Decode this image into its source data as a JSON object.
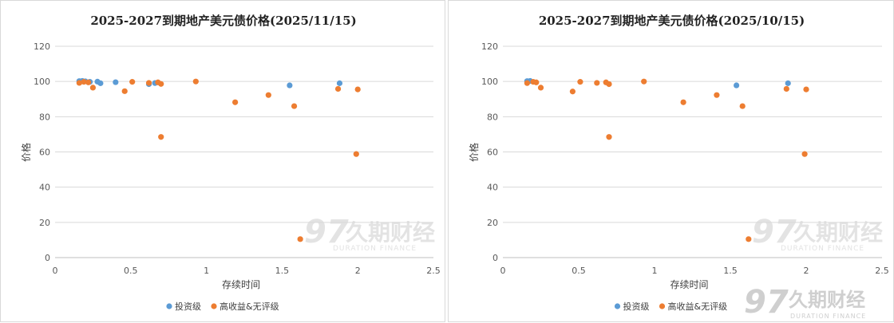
{
  "charts": [
    {
      "panel": "left",
      "title": "2025-2027到期地产美元债价格(2025/11/15)",
      "watermark": {
        "cn": "久期财经",
        "en": "DURATION FINANCE"
      },
      "chart_data": {
        "type": "scatter",
        "title": "2025-2027到期地产美元债价格(2025/11/15)",
        "xlabel": "存续时间",
        "ylabel": "价格",
        "xlim": [
          0,
          2.5
        ],
        "ylim": [
          0,
          120
        ],
        "xticks": [
          "0",
          "0.5",
          "1",
          "1.5",
          "2",
          "2.5"
        ],
        "yticks": [
          "0",
          "20",
          "40",
          "60",
          "80",
          "100",
          "120"
        ],
        "grid": "horizontal",
        "legend_position": "bottom",
        "series": [
          {
            "name": "投资级",
            "color": "#5b9bd5",
            "points": [
              [
                0.16,
                100.2
              ],
              [
                0.18,
                100.3
              ],
              [
                0.2,
                100.1
              ],
              [
                0.23,
                99.8
              ],
              [
                0.28,
                99.9
              ],
              [
                0.3,
                99.0
              ],
              [
                0.4,
                99.6
              ],
              [
                0.62,
                98.5
              ],
              [
                0.66,
                99.1
              ],
              [
                1.55,
                97.8
              ],
              [
                1.88,
                99.0
              ]
            ]
          },
          {
            "name": "高收益&无评级",
            "color": "#ed7d31",
            "points": [
              [
                0.16,
                99.2
              ],
              [
                0.19,
                99.8
              ],
              [
                0.22,
                99.5
              ],
              [
                0.25,
                96.5
              ],
              [
                0.46,
                94.5
              ],
              [
                0.51,
                99.8
              ],
              [
                0.62,
                99.2
              ],
              [
                0.68,
                99.5
              ],
              [
                0.7,
                98.6
              ],
              [
                0.7,
                68.5
              ],
              [
                0.93,
                100.0
              ],
              [
                1.19,
                88.2
              ],
              [
                1.41,
                92.3
              ],
              [
                1.58,
                86.0
              ],
              [
                1.62,
                10.5
              ],
              [
                1.87,
                95.8
              ],
              [
                1.99,
                58.8
              ],
              [
                2.0,
                95.5
              ]
            ]
          }
        ]
      }
    },
    {
      "panel": "right",
      "title": "2025-2027到期地产美元债价格(2025/10/15)",
      "watermark": {
        "cn": "久期财经",
        "en": "DURATION FINANCE"
      },
      "chart_data": {
        "type": "scatter",
        "title": "2025-2027到期地产美元债价格(2025/10/15)",
        "xlabel": "存续时间",
        "ylabel": "价格",
        "xlim": [
          0,
          2.5
        ],
        "ylim": [
          0,
          120
        ],
        "xticks": [
          "0",
          "0.5",
          "1",
          "1.5",
          "2",
          "2.5"
        ],
        "yticks": [
          "0",
          "20",
          "40",
          "60",
          "80",
          "100",
          "120"
        ],
        "grid": "horizontal",
        "legend_position": "bottom",
        "series": [
          {
            "name": "投资级",
            "color": "#5b9bd5",
            "points": [
              [
                0.16,
                100.2
              ],
              [
                0.18,
                100.3
              ],
              [
                1.54,
                97.8
              ],
              [
                1.88,
                99.0
              ]
            ]
          },
          {
            "name": "高收益&无评级",
            "color": "#ed7d31",
            "points": [
              [
                0.16,
                99.1
              ],
              [
                0.2,
                99.8
              ],
              [
                0.22,
                99.5
              ],
              [
                0.25,
                96.5
              ],
              [
                0.46,
                94.3
              ],
              [
                0.51,
                99.8
              ],
              [
                0.62,
                99.2
              ],
              [
                0.68,
                99.5
              ],
              [
                0.7,
                98.5
              ],
              [
                0.7,
                68.5
              ],
              [
                0.93,
                100.0
              ],
              [
                1.19,
                88.2
              ],
              [
                1.41,
                92.3
              ],
              [
                1.58,
                86.0
              ],
              [
                1.62,
                10.5
              ],
              [
                1.87,
                95.8
              ],
              [
                1.99,
                58.8
              ],
              [
                2.0,
                95.5
              ]
            ]
          }
        ]
      }
    }
  ],
  "page_watermark": {
    "cn": "久期财经",
    "en": "DURATION FINANCE"
  }
}
